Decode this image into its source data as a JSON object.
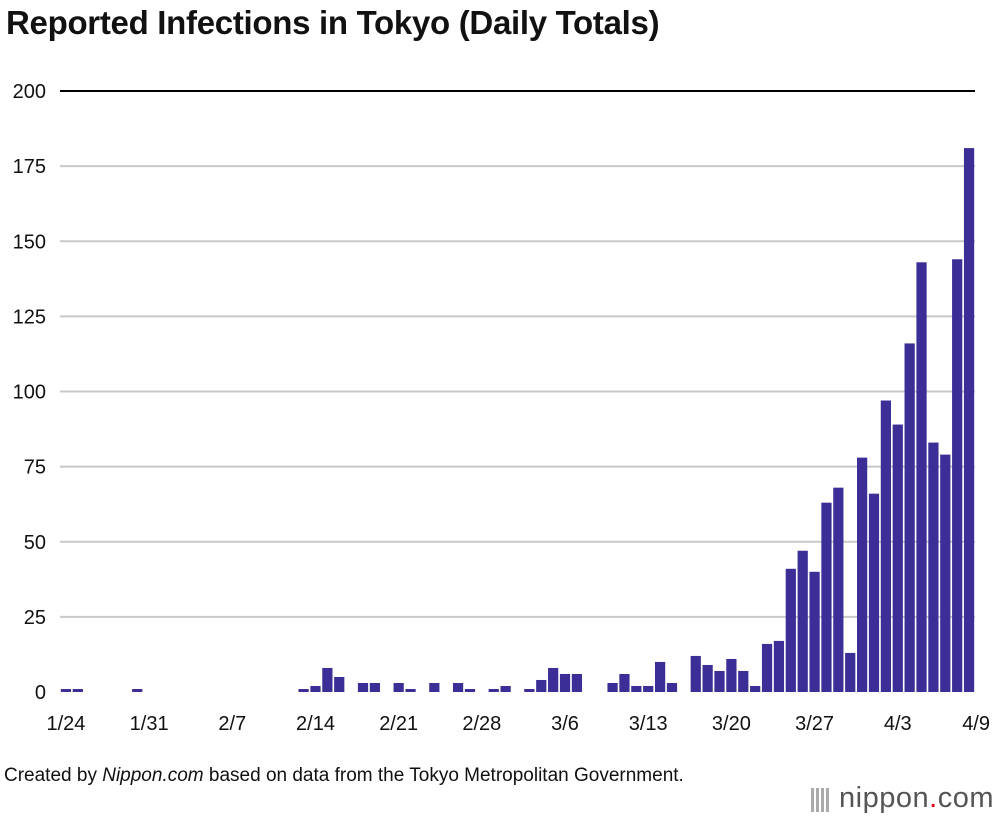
{
  "title": "Reported Infections in Tokyo (Daily Totals)",
  "credit": {
    "prefix": "Created by ",
    "source": "Nippon.com",
    "suffix": " based on data from the Tokyo Metropolitan Government."
  },
  "logo": {
    "name": "nippon",
    "dot": ".",
    "tld": "com"
  },
  "colors": {
    "bar": "#3b2e96",
    "grid": "#c8c8c8",
    "axis": "#000000"
  },
  "chart_data": {
    "type": "bar",
    "title": "Reported Infections in Tokyo (Daily Totals)",
    "xlabel": "",
    "ylabel": "",
    "ylim": [
      0,
      200
    ],
    "yticks": [
      0,
      25,
      50,
      75,
      100,
      125,
      150,
      175,
      200
    ],
    "grid": true,
    "x_tick_labels": [
      "1/24",
      "1/31",
      "2/7",
      "2/14",
      "2/21",
      "2/28",
      "3/6",
      "3/13",
      "3/20",
      "3/27",
      "4/3",
      "4/9"
    ],
    "categories": [
      "1/24",
      "1/25",
      "1/26",
      "1/27",
      "1/28",
      "1/29",
      "1/30",
      "1/31",
      "2/1",
      "2/2",
      "2/3",
      "2/4",
      "2/5",
      "2/6",
      "2/7",
      "2/8",
      "2/9",
      "2/10",
      "2/11",
      "2/12",
      "2/13",
      "2/14",
      "2/15",
      "2/16",
      "2/17",
      "2/18",
      "2/19",
      "2/20",
      "2/21",
      "2/22",
      "2/23",
      "2/24",
      "2/25",
      "2/26",
      "2/27",
      "2/28",
      "2/29",
      "3/1",
      "3/2",
      "3/3",
      "3/4",
      "3/5",
      "3/6",
      "3/7",
      "3/8",
      "3/9",
      "3/10",
      "3/11",
      "3/12",
      "3/13",
      "3/14",
      "3/15",
      "3/16",
      "3/17",
      "3/18",
      "3/19",
      "3/20",
      "3/21",
      "3/22",
      "3/23",
      "3/24",
      "3/25",
      "3/26",
      "3/27",
      "3/28",
      "3/29",
      "3/30",
      "3/31",
      "4/1",
      "4/2",
      "4/3",
      "4/4",
      "4/5",
      "4/6",
      "4/7",
      "4/8",
      "4/9"
    ],
    "values": [
      1,
      1,
      0,
      0,
      0,
      0,
      1,
      0,
      0,
      0,
      0,
      0,
      0,
      0,
      0,
      0,
      0,
      0,
      0,
      0,
      1,
      2,
      8,
      5,
      0,
      3,
      3,
      0,
      3,
      1,
      0,
      3,
      0,
      3,
      1,
      0,
      1,
      2,
      0,
      1,
      4,
      8,
      6,
      6,
      0,
      0,
      3,
      6,
      2,
      2,
      10,
      3,
      0,
      12,
      9,
      7,
      11,
      7,
      2,
      16,
      17,
      41,
      47,
      40,
      63,
      68,
      13,
      78,
      66,
      97,
      89,
      116,
      143,
      83,
      79,
      144,
      181
    ]
  }
}
